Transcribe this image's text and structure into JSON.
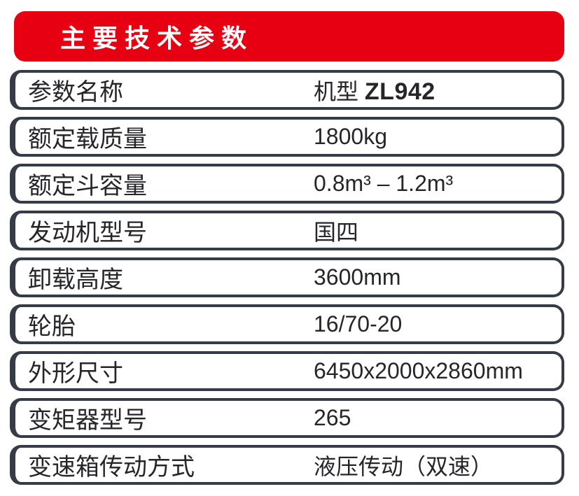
{
  "page": {
    "background": "#ffffff"
  },
  "header": {
    "title": "主要技术参数",
    "background": "#e60012",
    "text_color": "#ffffff"
  },
  "table": {
    "border_color": "#353b47",
    "text_color": "#26262a",
    "rows": [
      {
        "label": "参数名称",
        "value": "机型 ",
        "value_bold": "ZL942"
      },
      {
        "label": "额定载质量",
        "value": "1800kg"
      },
      {
        "label": "额定斗容量",
        "value": "0.8m³ – 1.2m³"
      },
      {
        "label": "发动机型号",
        "value": "国四"
      },
      {
        "label": "卸载高度",
        "value": "3600mm"
      },
      {
        "label": "轮胎",
        "value": "16/70-20"
      },
      {
        "label": "外形尺寸",
        "value": "6450x2000x2860mm"
      },
      {
        "label": "变矩器型号",
        "value": "265"
      },
      {
        "label": "变速箱传动方式",
        "value": "液压传动（双速）"
      }
    ]
  }
}
